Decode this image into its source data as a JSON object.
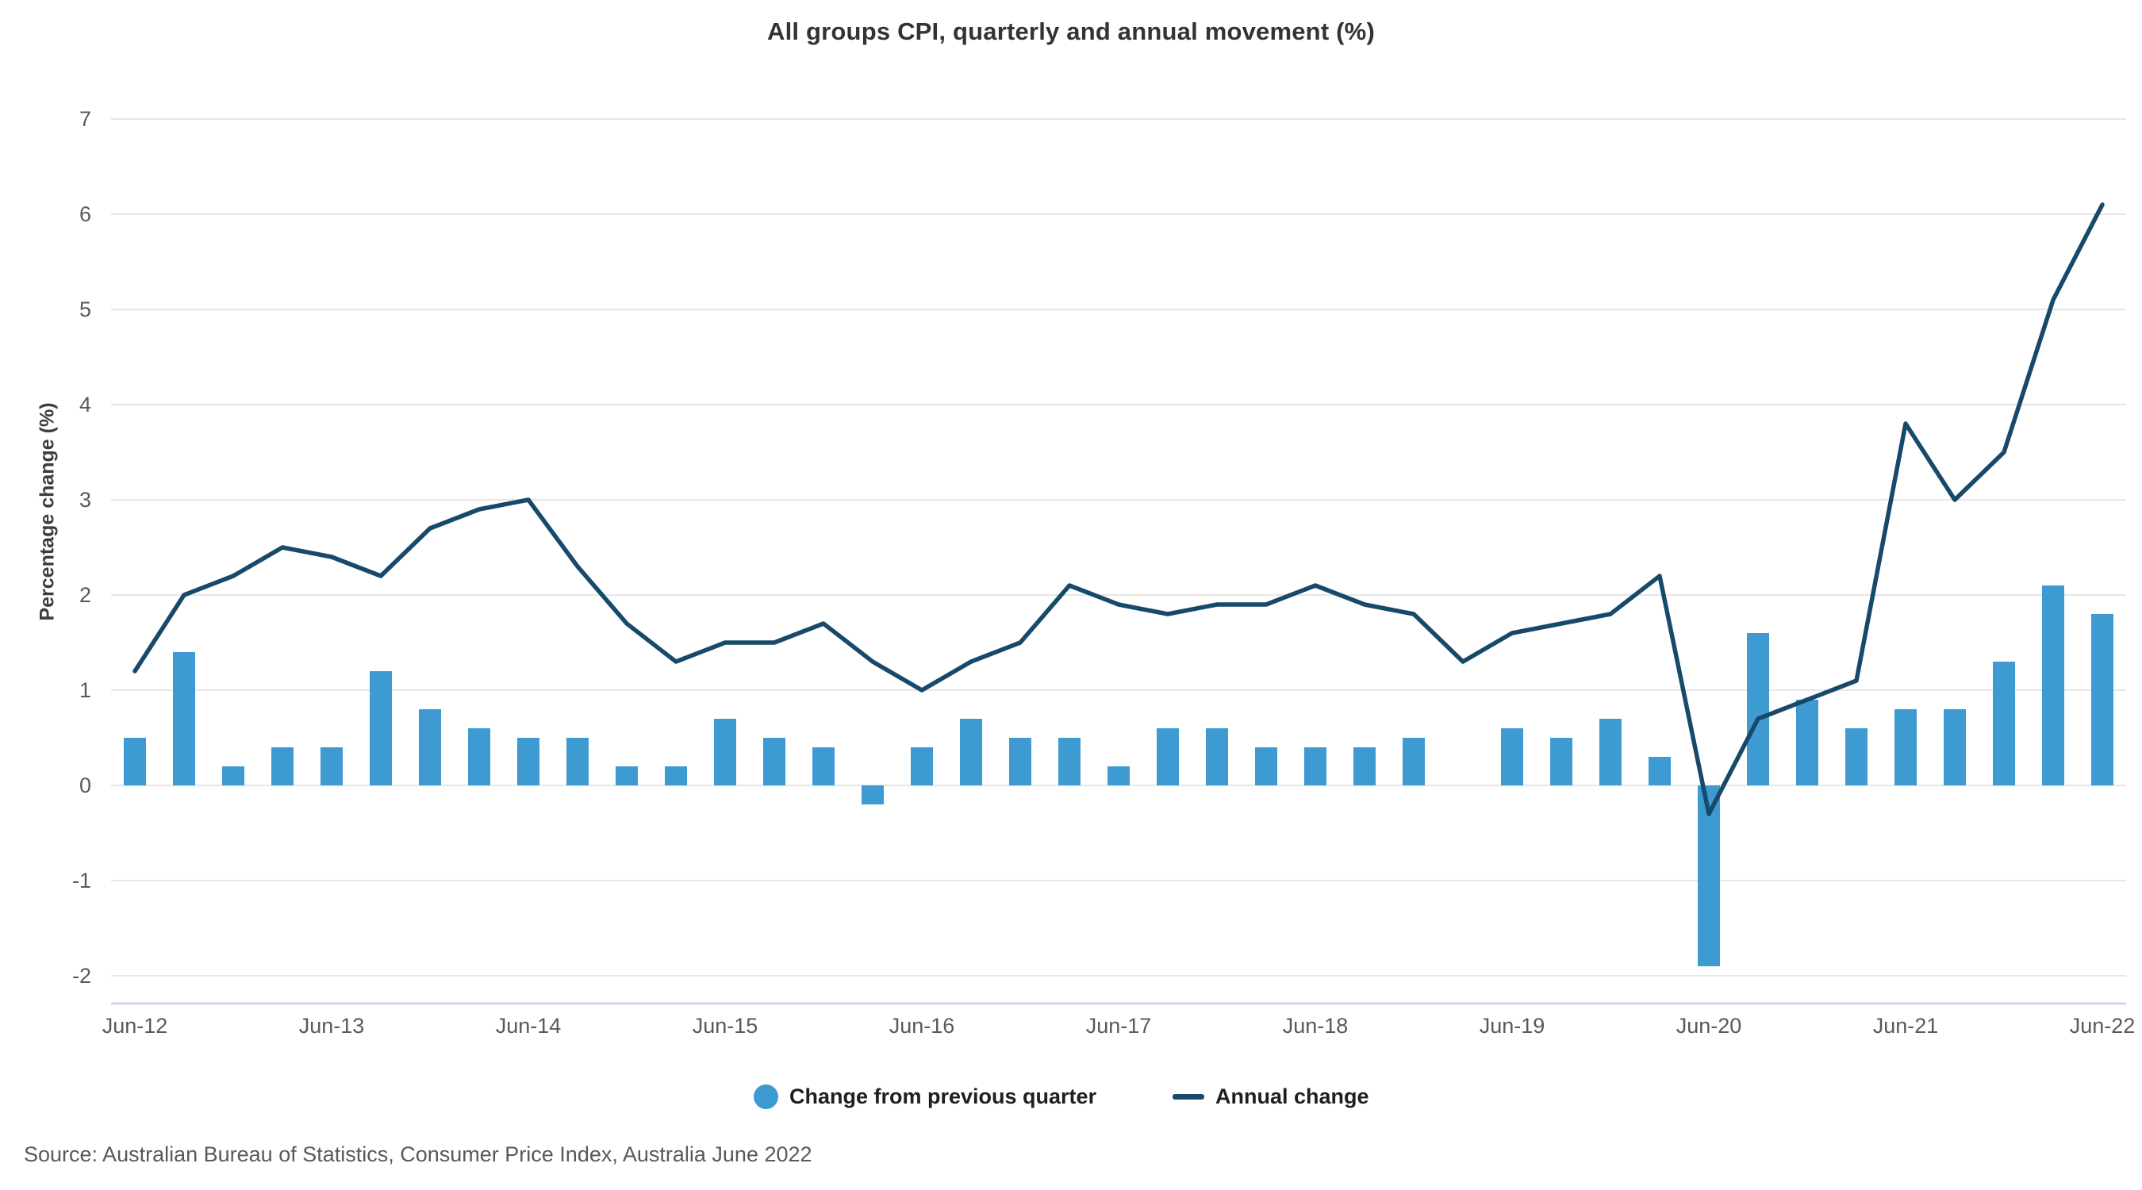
{
  "source_note": "Source: Australian Bureau of Statistics, Consumer Price Index, Australia June 2022",
  "colors": {
    "bar": "#3d9bd2",
    "line": "#17496b",
    "grid": "#e6e6e6",
    "axis_line": "#ccd6eb",
    "tick_text": "#595959",
    "title_text": "#333333",
    "legend_text": "#1f1f1f"
  },
  "chart_data": {
    "type": "bar+line",
    "title": "All groups CPI, quarterly and annual movement (%)",
    "xlabel": "",
    "ylabel": "Percentage change (%)",
    "ylim": [
      -2,
      7
    ],
    "yticks": [
      7,
      6,
      5,
      4,
      3,
      2,
      1,
      0,
      -1,
      -2
    ],
    "grid": true,
    "legend_position": "bottom",
    "x_tick_labels": [
      "Jun-12",
      "Jun-13",
      "Jun-14",
      "Jun-15",
      "Jun-16",
      "Jun-17",
      "Jun-18",
      "Jun-19",
      "Jun-20",
      "Jun-21",
      "Jun-22"
    ],
    "x_tick_every": 4,
    "categories": [
      "Jun-12",
      "Sep-12",
      "Dec-12",
      "Mar-13",
      "Jun-13",
      "Sep-13",
      "Dec-13",
      "Mar-14",
      "Jun-14",
      "Sep-14",
      "Dec-14",
      "Mar-15",
      "Jun-15",
      "Sep-15",
      "Dec-15",
      "Mar-16",
      "Jun-16",
      "Sep-16",
      "Dec-16",
      "Mar-17",
      "Jun-17",
      "Sep-17",
      "Dec-17",
      "Mar-18",
      "Jun-18",
      "Sep-18",
      "Dec-18",
      "Mar-19",
      "Jun-19",
      "Sep-19",
      "Dec-19",
      "Mar-20",
      "Jun-20",
      "Sep-20",
      "Dec-20",
      "Mar-21",
      "Jun-21",
      "Sep-21",
      "Dec-21",
      "Mar-22",
      "Jun-22"
    ],
    "series": [
      {
        "name": "Change from previous quarter",
        "type": "bar",
        "values": [
          0.5,
          1.4,
          0.2,
          0.4,
          0.4,
          1.2,
          0.8,
          0.6,
          0.5,
          0.5,
          0.2,
          0.2,
          0.7,
          0.5,
          0.4,
          -0.2,
          0.4,
          0.7,
          0.5,
          0.5,
          0.2,
          0.6,
          0.6,
          0.4,
          0.4,
          0.4,
          0.5,
          0.0,
          0.6,
          0.5,
          0.7,
          0.3,
          -1.9,
          1.6,
          0.9,
          0.6,
          0.8,
          0.8,
          1.3,
          2.1,
          1.8
        ]
      },
      {
        "name": "Annual change",
        "type": "line",
        "values": [
          1.2,
          2.0,
          2.2,
          2.5,
          2.4,
          2.2,
          2.7,
          2.9,
          3.0,
          2.3,
          1.7,
          1.3,
          1.5,
          1.5,
          1.7,
          1.3,
          1.0,
          1.3,
          1.5,
          2.1,
          1.9,
          1.8,
          1.9,
          1.9,
          2.1,
          1.9,
          1.8,
          1.3,
          1.6,
          1.7,
          1.8,
          2.2,
          -0.3,
          0.7,
          0.9,
          1.1,
          3.8,
          3.0,
          3.5,
          5.1,
          6.1
        ]
      }
    ]
  }
}
